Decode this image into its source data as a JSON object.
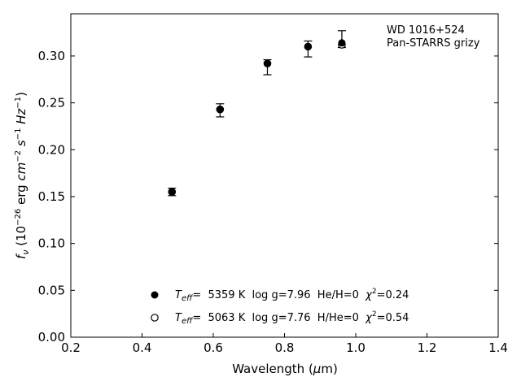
{
  "chart_data": {
    "type": "scatter",
    "xlabel": "Wavelength (μm)",
    "ylabel": "f_ν (10^-26 erg cm^-2 s^-1 Hz^-1)",
    "xlim": [
      0.2,
      1.4
    ],
    "ylim": [
      0.0,
      0.345
    ],
    "xticks": [
      0.2,
      0.4,
      0.6,
      0.8,
      1.0,
      1.2,
      1.4
    ],
    "xtick_labels": [
      "0.2",
      "0.4",
      "0.6",
      "0.8",
      "1.0",
      "1.2",
      "1.4"
    ],
    "yticks": [
      0.0,
      0.05,
      0.1,
      0.15,
      0.2,
      0.25,
      0.3
    ],
    "ytick_labels": [
      "0.00",
      "0.05",
      "0.10",
      "0.15",
      "0.20",
      "0.25",
      "0.30"
    ],
    "grid": false,
    "annotation": [
      "WD 1016+524",
      "Pan-STARRS grizy"
    ],
    "observed": {
      "x": [
        0.484,
        0.619,
        0.752,
        0.866,
        0.961
      ],
      "y": [
        0.155,
        0.242,
        0.289,
        0.307,
        0.318
      ],
      "yerr_low": [
        0.004,
        0.007,
        0.009,
        0.008,
        0.009
      ],
      "yerr_high": [
        0.004,
        0.007,
        0.007,
        0.009,
        0.009
      ]
    },
    "series": [
      {
        "marker": "filled-circle",
        "x": [
          0.484,
          0.619,
          0.752,
          0.866,
          0.961
        ],
        "y": [
          0.155,
          0.243,
          0.292,
          0.31,
          0.314
        ],
        "legend_label": {
          "teff_sym": "T",
          "teff_sub": "eff",
          "teff_val": "=  5359 K  log g=7.96  He/H=0  ",
          "chi_sym": "χ",
          "chi_sup": "2",
          "chi_val": "=0.24"
        }
      },
      {
        "marker": "open-circle",
        "x": [
          0.484,
          0.619,
          0.752,
          0.866,
          0.961
        ],
        "y": [
          0.155,
          0.243,
          0.292,
          0.31,
          0.312
        ],
        "legend_label": {
          "teff_sym": "T",
          "teff_sub": "eff",
          "teff_val": "=  5063 K  log g=7.76  H/He=0  ",
          "chi_sym": "χ",
          "chi_sup": "2",
          "chi_val": "=0.54"
        }
      }
    ],
    "legend_position": "lower-center",
    "colors": {
      "marker": "#000000",
      "axis": "#000000"
    }
  }
}
